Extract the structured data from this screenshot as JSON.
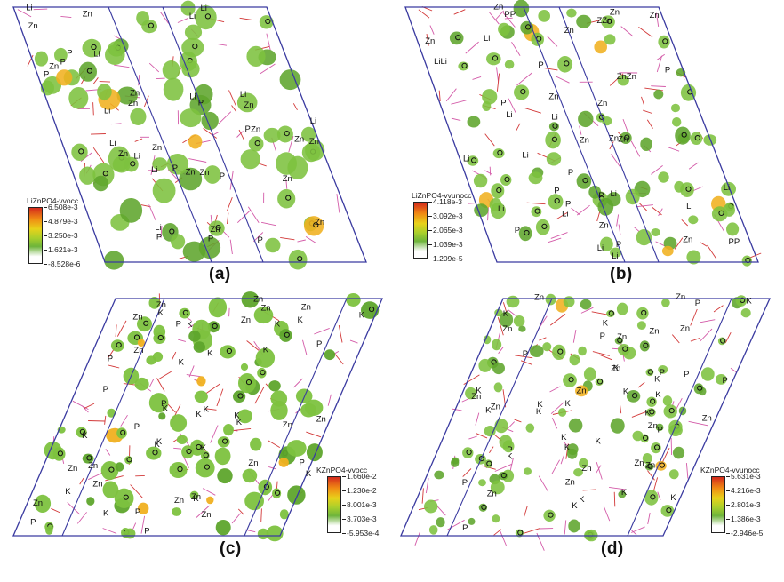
{
  "panels": [
    {
      "id": "a",
      "caption": "(a)",
      "legend_title": "LiZnPO4-vvocc",
      "legend_ticks": [
        "6.508e-3",
        "4.879e-3",
        "3.250e-3",
        "1.621e-3",
        "-8.528e-6"
      ],
      "cation": "Li",
      "labels": [
        "Zn",
        "Zn",
        "Zn",
        "Zn",
        "Zn",
        "P",
        "P",
        "P",
        "P",
        "Li",
        "Li",
        "Li",
        "Li",
        "Zn",
        "Zn",
        "Zn",
        "Zn",
        "Zn",
        "Zn",
        "Zn",
        "Zn",
        "P",
        "P",
        "P",
        "P",
        "Li",
        "Li",
        "Li",
        "Li",
        "P",
        "P",
        "Zn",
        "Zn",
        "Zn",
        "Li",
        "Li",
        "Li",
        "Li"
      ]
    },
    {
      "id": "b",
      "caption": "(b)",
      "legend_title": "LiZnPO4-vvunocc",
      "legend_ticks": [
        "4.118e-3",
        "3.092e-3",
        "2.065e-3",
        "1.039e-3",
        "1.209e-5"
      ],
      "cation": "Li",
      "labels": [
        "Zn",
        "ZnZn",
        "Zn",
        "P",
        "P",
        "P",
        "Li",
        "Li",
        "Li",
        "Li",
        "P",
        "Zn",
        "Zn",
        "Zn",
        "Li",
        "Li",
        "Li",
        "Zn",
        "Zn",
        "Zn",
        "Zn",
        "P",
        "P",
        "PP",
        "P",
        "Li",
        "LiLi",
        "Li",
        "Zn",
        "Zn",
        "ZZn",
        "Zn",
        "P",
        "PP",
        "P",
        "Li",
        "Li",
        "Li"
      ]
    },
    {
      "id": "c",
      "caption": "(c)",
      "legend_title": "KZnPO4-vvocc",
      "legend_ticks": [
        "1.660e-2",
        "1.230e-2",
        "8.001e-3",
        "3.703e-3",
        "-5.953e-4"
      ],
      "cation": "K",
      "labels": [
        "K",
        "Zn",
        "Zn",
        "P",
        "K",
        "K",
        "K",
        "Zn",
        "Zn",
        "P",
        "P",
        "P",
        "K",
        "K",
        "Zn",
        "Zn",
        "Zn",
        "Zn",
        "P",
        "K",
        "K",
        "K",
        "K",
        "Zn",
        "Zn",
        "Zn",
        "P",
        "P",
        "K",
        "K",
        "K",
        "K",
        "Zn",
        "Zn",
        "Zn",
        "K",
        "K",
        "K",
        "K",
        "Zn",
        "Zn",
        "Zn",
        "P",
        "P",
        "P",
        "K",
        "K",
        "K"
      ]
    },
    {
      "id": "d",
      "caption": "(d)",
      "legend_title": "KZnPO4-vvunocc",
      "legend_ticks": [
        "5.631e-3",
        "4.216e-3",
        "2.801e-3",
        "1.386e-3",
        "-2.946e-5"
      ],
      "cation": "K",
      "labels": [
        "K",
        "Zn",
        "Zn",
        "P",
        "K",
        "K",
        "K",
        "Zn",
        "Zn",
        "P",
        "P",
        "P",
        "K",
        "K",
        "Zn",
        "Zn",
        "Zn",
        "Zn",
        "P",
        "K",
        "K",
        "K",
        "K",
        "Zn",
        "Zn",
        "Zn",
        "P",
        "P",
        "K",
        "K",
        "K",
        "K",
        "Zn",
        "Zn",
        "Zn",
        "K",
        "K",
        "K",
        "K",
        "Zn",
        "Zn",
        "Zn",
        "P",
        "P",
        "P",
        "K",
        "K",
        "K"
      ]
    }
  ],
  "colors": {
    "cell": "#3a3aa0",
    "blob": "#7dc23f",
    "blob_dark": "#5ea52c",
    "blob_hot": "#f0b020",
    "bond": "#d23838",
    "bond_pink": "#d35aa8",
    "atom_text": "#111111"
  }
}
